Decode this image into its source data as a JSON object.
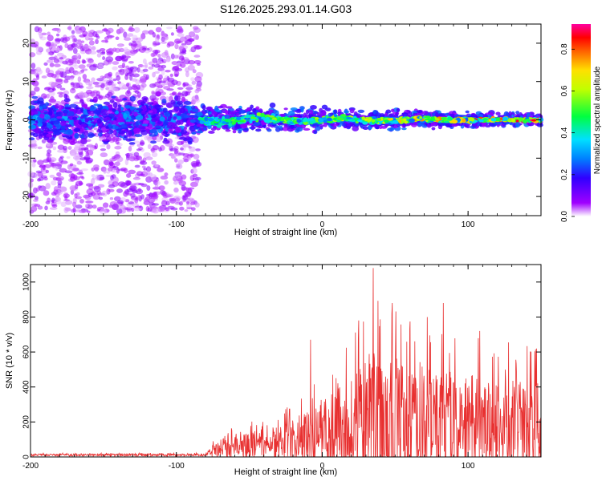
{
  "title": "S126.2025.293.01.14.G03",
  "chart_data": [
    {
      "type": "heatmap",
      "xlabel": "Height of straight line (km)",
      "ylabel": "Frequency (Hz)",
      "xlim": [
        -200,
        150
      ],
      "ylim": [
        -25,
        25
      ],
      "xticks": [
        -200,
        -100,
        0,
        100
      ],
      "yticks": [
        -20,
        -10,
        0,
        10,
        20
      ],
      "colorbar": {
        "label": "Normalized spectral amplitude",
        "range": [
          0,
          0.92
        ],
        "ticks": [
          0.0,
          0.2,
          0.4,
          0.6,
          0.8
        ],
        "tick_labels": [
          "0.0",
          "0.2",
          "0.4",
          "0.6",
          "0.8"
        ]
      },
      "features": [
        {
          "region": "noise",
          "x_range": [
            -200,
            -84
          ],
          "freq_spread_hz": 24,
          "max_amplitude": 0.35
        },
        {
          "region": "signal",
          "x_range": [
            -84,
            150
          ],
          "center_freq_hz": 0,
          "freq_spread_hz": 3,
          "max_amplitude": 0.92
        }
      ]
    },
    {
      "type": "line",
      "xlabel": "Height of straight line (km)",
      "ylabel": "SNR (10 * v/v)",
      "xlim": [
        -200,
        150
      ],
      "ylim": [
        0,
        1100
      ],
      "xticks": [
        -200,
        -100,
        0,
        100
      ],
      "yticks": [
        0,
        200,
        400,
        600,
        800,
        1000
      ],
      "color": "#e83030",
      "envelope": [
        {
          "x": -200,
          "base": 12,
          "amp": 10
        },
        {
          "x": -80,
          "base": 12,
          "amp": 12
        },
        {
          "x": -75,
          "base": 40,
          "amp": 50
        },
        {
          "x": -60,
          "base": 60,
          "amp": 120
        },
        {
          "x": -40,
          "base": 80,
          "amp": 140
        },
        {
          "x": -20,
          "base": 100,
          "amp": 200
        },
        {
          "x": 0,
          "base": 150,
          "amp": 330
        },
        {
          "x": 20,
          "base": 200,
          "amp": 470
        },
        {
          "x": 35,
          "base": 230,
          "amp": 720
        },
        {
          "x": 60,
          "base": 220,
          "amp": 560
        },
        {
          "x": 85,
          "base": 200,
          "amp": 520
        },
        {
          "x": 120,
          "base": 180,
          "amp": 480
        },
        {
          "x": 150,
          "base": 200,
          "amp": 450
        }
      ],
      "peaks": [
        {
          "x": 35,
          "y": 1080
        },
        {
          "x": 48,
          "y": 880
        },
        {
          "x": 83,
          "y": 880
        },
        {
          "x": 72,
          "y": 800
        },
        {
          "x": 25,
          "y": 780
        },
        {
          "x": 108,
          "y": 720
        },
        {
          "x": -8,
          "y": 670
        },
        {
          "x": 147,
          "y": 620
        }
      ]
    }
  ]
}
